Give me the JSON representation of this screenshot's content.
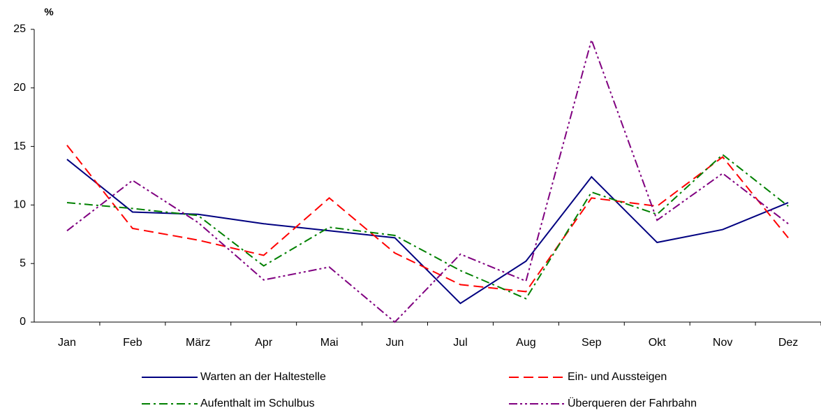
{
  "chart_data": {
    "type": "line",
    "ylabel": "%",
    "categories": [
      "Jan",
      "Feb",
      "März",
      "Apr",
      "Mai",
      "Jun",
      "Jul",
      "Aug",
      "Sep",
      "Okt",
      "Nov",
      "Dez"
    ],
    "series": [
      {
        "name": "Warten an der Haltestelle",
        "color": "#000080",
        "dash": "solid",
        "values": [
          13.9,
          9.4,
          9.2,
          8.4,
          7.8,
          7.2,
          1.6,
          5.2,
          12.4,
          6.8,
          7.9,
          10.2
        ]
      },
      {
        "name": "Ein- und Aussteigen",
        "color": "#ff0000",
        "dash": "dashed",
        "values": [
          15.1,
          8.0,
          7.0,
          5.7,
          10.6,
          5.9,
          3.2,
          2.6,
          10.6,
          9.9,
          14.1,
          7.2
        ]
      },
      {
        "name": "Aufenthalt im Schulbus",
        "color": "#008000",
        "dash": "dashdot",
        "values": [
          10.2,
          9.7,
          9.1,
          4.8,
          8.1,
          7.4,
          4.4,
          2.0,
          11.1,
          9.2,
          14.3,
          9.9
        ]
      },
      {
        "name": "Überqueren der Fahrbahn",
        "color": "#800080",
        "dash": "dashdotdot",
        "values": [
          7.8,
          12.1,
          8.5,
          3.6,
          4.7,
          0.0,
          5.8,
          3.5,
          24.1,
          8.7,
          12.7,
          8.4
        ]
      }
    ],
    "ylim": [
      0,
      25
    ],
    "yticks": [
      0,
      5,
      10,
      15,
      20,
      25
    ],
    "grid": false,
    "legend": "bottom"
  }
}
